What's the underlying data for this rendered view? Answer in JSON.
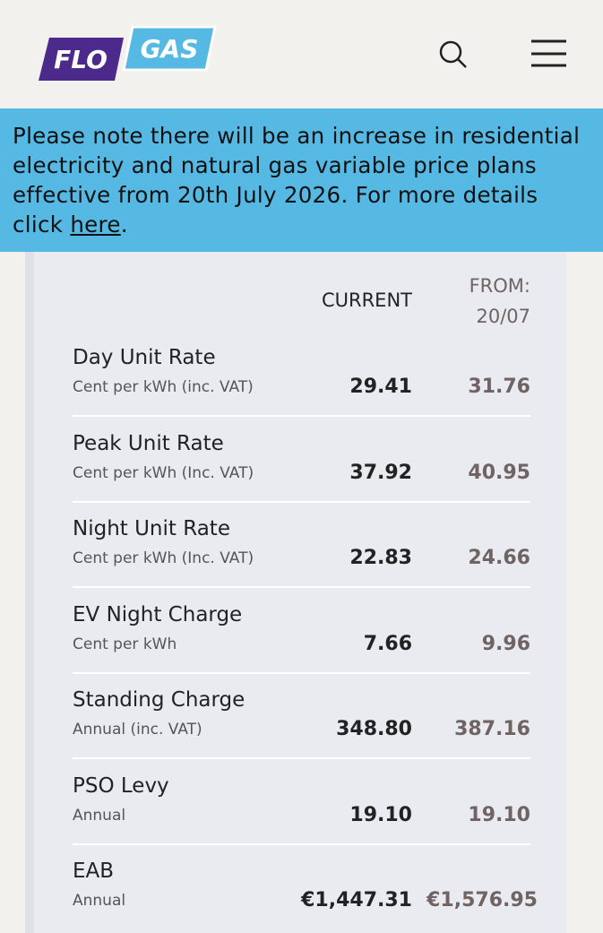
{
  "header": {
    "logo": {
      "left": "FLO",
      "right": "GAS"
    }
  },
  "banner": {
    "text": "Please note there will be an increase in residential electricity and natural gas variable price plans effective from 20th July 2026. For more details click ",
    "link": "here",
    "end": "."
  },
  "table": {
    "columns": {
      "current": "CURRENT",
      "from": "FROM:",
      "from_date": "20/07"
    },
    "rows": [
      [
        "Day Unit Rate",
        "Cent per kWh (inc. VAT)",
        "29.41",
        "31.76"
      ],
      [
        "Peak Unit Rate",
        "Cent per kWh (Inc. VAT)",
        "37.92",
        "40.95"
      ],
      [
        "Night Unit Rate",
        "Cent per kWh (Inc. VAT)",
        "22.83",
        "24.66"
      ],
      [
        "EV Night Charge",
        "Cent per kWh",
        "7.66",
        "9.96"
      ],
      [
        "Standing Charge",
        "Annual (inc. VAT)",
        "348.80",
        "387.16"
      ],
      [
        "PSO Levy",
        "Annual",
        "19.10",
        "19.10"
      ],
      [
        "EAB",
        "Annual",
        "€1,447.31",
        "€1,576.95"
      ]
    ]
  }
}
